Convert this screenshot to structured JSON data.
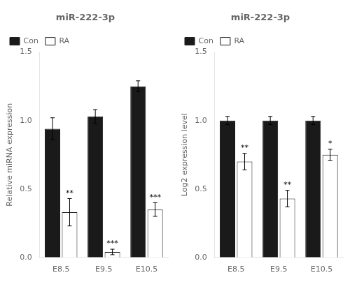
{
  "chart_data": [
    {
      "type": "bar",
      "title": "miR-222-3p",
      "categories": [
        "E8.5",
        "E9.5",
        "E10.5"
      ],
      "series": [
        {
          "name": "Con",
          "color": "#1a1a1a",
          "values": [
            0.94,
            1.03,
            1.25
          ],
          "errors": [
            0.08,
            0.05,
            0.04
          ]
        },
        {
          "name": "RA",
          "color": "#ffffff",
          "values": [
            0.33,
            0.04,
            0.35
          ],
          "errors": [
            0.1,
            0.02,
            0.05
          ],
          "annotations": [
            "**",
            "***",
            "***"
          ]
        }
      ],
      "y_label": "Relative miRNA expression",
      "ylim": [
        0,
        1.5
      ],
      "yticks": [
        {
          "value": 0,
          "label": "0.0"
        },
        0.5,
        {
          "value": 1,
          "label": "1.0"
        },
        1.5
      ],
      "grid": false,
      "legend": "upper left"
    },
    {
      "type": "bar",
      "title": "miR-222-3p",
      "categories": [
        "E8.5",
        "E9.5",
        "E10.5"
      ],
      "series": [
        {
          "name": "Con",
          "color": "#1a1a1a",
          "values": [
            1.0,
            1.0,
            1.0
          ],
          "errors": [
            0.03,
            0.03,
            0.03
          ]
        },
        {
          "name": "RA",
          "color": "#ffffff",
          "values": [
            0.7,
            0.43,
            0.75
          ],
          "errors": [
            0.06,
            0.06,
            0.04
          ],
          "annotations": [
            "**",
            "**",
            "*"
          ]
        }
      ],
      "y_label": "Log2 expression level",
      "ylim": [
        0,
        1.5
      ],
      "yticks": [
        {
          "value": 0,
          "label": "0.0"
        },
        0.5,
        {
          "value": 1,
          "label": "1.0"
        },
        1.5
      ],
      "grid": false,
      "legend": "upper left"
    }
  ]
}
